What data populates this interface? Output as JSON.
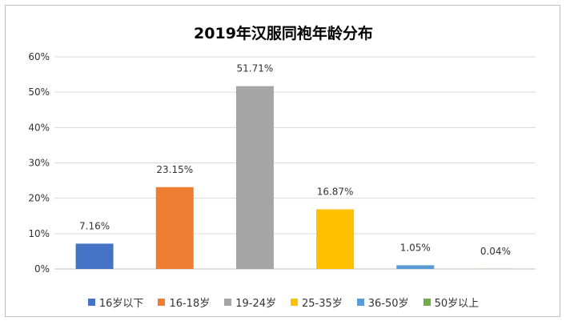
{
  "chart_data": {
    "type": "bar",
    "title": "2019年汉服同袍年龄分布",
    "categories": [
      "16岁以下",
      "16-18岁",
      "19-24岁",
      "25-35岁",
      "36-50岁",
      "50岁以上"
    ],
    "values": [
      7.16,
      23.15,
      51.71,
      16.87,
      1.05,
      0.04
    ],
    "value_labels": [
      "7.16%",
      "23.15%",
      "51.71%",
      "16.87%",
      "1.05%",
      "0.04%"
    ],
    "colors": [
      "#4472C4",
      "#ED7D31",
      "#A5A5A5",
      "#FFC000",
      "#5B9BD5",
      "#70AD47"
    ],
    "yticks": [
      "0%",
      "10%",
      "20%",
      "30%",
      "40%",
      "50%",
      "60%"
    ],
    "ylim": [
      0,
      60
    ],
    "grid": true,
    "legend_position": "bottom"
  }
}
